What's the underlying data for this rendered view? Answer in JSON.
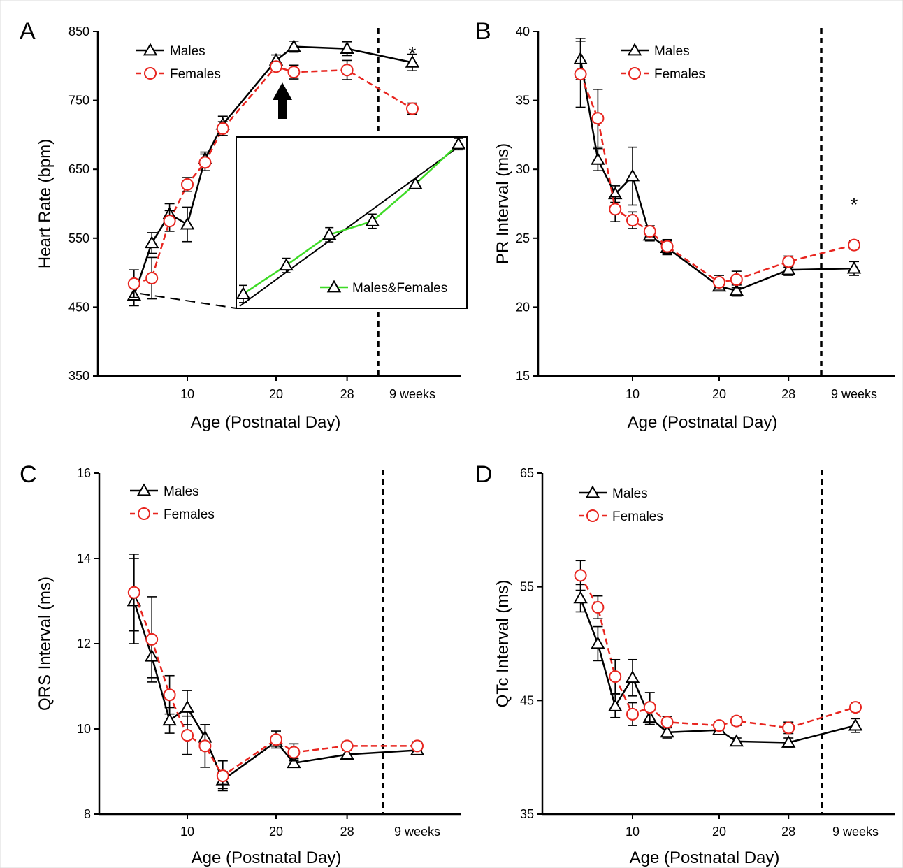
{
  "chart_data": [
    {
      "panel": "A",
      "type": "line",
      "xlabel": "Age (Postnatal Day)",
      "ylabel": "Heart Rate (bpm)",
      "ylim": [
        350,
        850
      ],
      "yticks": [
        "350",
        "450",
        "550",
        "650",
        "750",
        "850"
      ],
      "xticks": [
        "10",
        "20",
        "28"
      ],
      "extra_xtick": "9 weeks",
      "divider_day": 31,
      "legend_placement": "top-left",
      "series": [
        {
          "name": "Males",
          "color": "#000000",
          "marker": "triangle",
          "x": [
            4,
            6,
            8,
            10,
            12,
            14,
            20,
            22,
            28,
            "9 weeks"
          ],
          "values": [
            467,
            543,
            585,
            570,
            665,
            715,
            808,
            828,
            825,
            805
          ],
          "error": [
            15,
            15,
            15,
            25,
            10,
            12,
            8,
            8,
            10,
            12
          ]
        },
        {
          "name": "Females",
          "color": "#e8251f",
          "marker": "circle",
          "x": [
            4,
            6,
            8,
            10,
            12,
            14,
            20,
            22,
            28,
            "9 weeks"
          ],
          "values": [
            484,
            492,
            575,
            628,
            660,
            709,
            799,
            791,
            794,
            738
          ],
          "error": [
            20,
            30,
            15,
            10,
            12,
            10,
            6,
            10,
            14,
            8
          ]
        }
      ],
      "annotations": [
        "*"
      ],
      "inset": {
        "legend": "Males&Females",
        "color": "#3ddb25",
        "values": [
          470,
          510,
          553,
          572,
          624,
          680
        ],
        "error": [
          12,
          10,
          10,
          10,
          5,
          8
        ]
      }
    },
    {
      "panel": "B",
      "type": "line",
      "xlabel": "Age (Postnatal Day)",
      "ylabel": "PR Interval (ms)",
      "ylim": [
        15,
        40
      ],
      "yticks": [
        "15",
        "20",
        "25",
        "30",
        "35",
        "40"
      ],
      "xticks": [
        "10",
        "20",
        "28"
      ],
      "extra_xtick": "9 weeks",
      "divider_day": 31,
      "legend_placement": "top-left",
      "series": [
        {
          "name": "Males",
          "color": "#000000",
          "marker": "triangle",
          "x": [
            4,
            6,
            8,
            10,
            12,
            14,
            20,
            22,
            28,
            "9 weeks"
          ],
          "values": [
            38.0,
            30.7,
            28.2,
            29.5,
            25.2,
            24.3,
            21.5,
            21.2,
            22.7,
            22.8
          ],
          "error": [
            1.5,
            0.8,
            0.6,
            2.1,
            0.4,
            0.5,
            0.3,
            0.4,
            0.4,
            0.5
          ]
        },
        {
          "name": "Females",
          "color": "#e8251f",
          "marker": "circle",
          "x": [
            4,
            6,
            8,
            10,
            12,
            14,
            20,
            22,
            28,
            "9 weeks"
          ],
          "values": [
            36.9,
            33.7,
            27.1,
            26.3,
            25.5,
            24.4,
            21.8,
            22.0,
            23.3,
            24.5
          ],
          "error": [
            2.4,
            2.1,
            0.9,
            0.6,
            0.4,
            0.5,
            0.5,
            0.6,
            0.4,
            0.3
          ]
        }
      ],
      "annotations": [
        "*"
      ]
    },
    {
      "panel": "C",
      "type": "line",
      "xlabel": "Age (Postnatal Day)",
      "ylabel": "QRS Interval (ms)",
      "ylim": [
        8,
        16
      ],
      "yticks": [
        "8",
        "10",
        "12",
        "14",
        "16"
      ],
      "xticks": [
        "10",
        "20",
        "28"
      ],
      "extra_xtick": "9 weeks",
      "divider_day": 31,
      "legend_placement": "top-left",
      "series": [
        {
          "name": "Males",
          "color": "#000000",
          "marker": "triangle",
          "x": [
            4,
            6,
            8,
            10,
            12,
            14,
            20,
            22,
            28,
            "9 weeks"
          ],
          "values": [
            13.0,
            11.7,
            10.2,
            10.5,
            9.8,
            8.8,
            9.7,
            9.2,
            9.4,
            9.5
          ],
          "error": [
            1.0,
            0.5,
            0.3,
            0.4,
            0.3,
            0.2,
            0.1,
            0.1,
            0.1,
            0.1
          ]
        },
        {
          "name": "Females",
          "color": "#e8251f",
          "marker": "circle",
          "x": [
            4,
            6,
            8,
            10,
            12,
            14,
            20,
            22,
            28,
            "9 weeks"
          ],
          "values": [
            13.2,
            12.1,
            10.8,
            9.85,
            9.6,
            8.9,
            9.75,
            9.45,
            9.6,
            9.6
          ],
          "error": [
            0.9,
            1.0,
            0.45,
            0.45,
            0.5,
            0.35,
            0.2,
            0.2,
            0.1,
            0.1
          ]
        }
      ]
    },
    {
      "panel": "D",
      "type": "line",
      "xlabel": "Age (Postnatal Day)",
      "ylabel": "QTc Interval (ms)",
      "ylim": [
        35,
        65
      ],
      "yticks": [
        "35",
        "45",
        "55",
        "65"
      ],
      "xticks": [
        "10",
        "20",
        "28"
      ],
      "extra_xtick": "9 weeks",
      "divider_day": 31,
      "legend_placement": "top-left",
      "series": [
        {
          "name": "Males",
          "color": "#000000",
          "marker": "triangle",
          "x": [
            4,
            6,
            8,
            10,
            12,
            14,
            20,
            22,
            28,
            "9 weeks"
          ],
          "values": [
            54.0,
            50.0,
            44.5,
            47.0,
            43.5,
            42.2,
            42.4,
            41.4,
            41.3,
            42.8
          ],
          "error": [
            1.2,
            1.5,
            1.0,
            1.6,
            0.6,
            0.5,
            0.4,
            0.3,
            0.4,
            0.6
          ]
        },
        {
          "name": "Females",
          "color": "#e8251f",
          "marker": "circle",
          "x": [
            4,
            6,
            8,
            10,
            12,
            14,
            20,
            22,
            28,
            "9 weeks"
          ],
          "values": [
            56.0,
            53.2,
            47.1,
            43.8,
            44.4,
            43.1,
            42.8,
            43.2,
            42.6,
            44.4
          ],
          "error": [
            1.3,
            1.0,
            1.5,
            1.0,
            1.3,
            0.5,
            0.3,
            0.4,
            0.5,
            0.4
          ]
        }
      ]
    }
  ]
}
